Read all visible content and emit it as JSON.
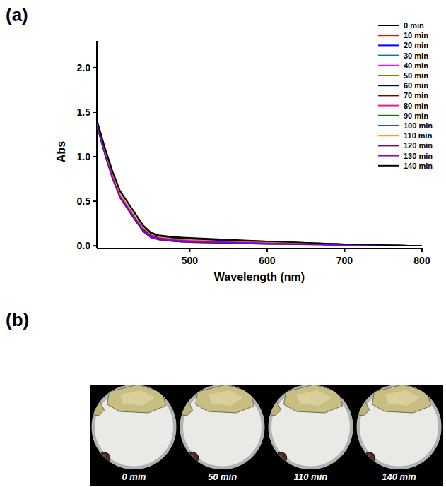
{
  "chart_data": {
    "type": "line",
    "xlabel": "Wavelength (nm)",
    "ylabel": "Abs",
    "x": [
      380,
      390,
      400,
      410,
      420,
      430,
      440,
      450,
      460,
      480,
      500,
      550,
      600,
      700,
      800
    ],
    "xlim": [
      380,
      800
    ],
    "xticks": [
      500,
      600,
      700,
      800
    ],
    "ylim": [
      -0.03,
      2.3
    ],
    "yticks": [
      {
        "value": 0,
        "label": "0.0"
      },
      0.5,
      {
        "value": 1,
        "label": "1.0"
      },
      1.5,
      {
        "value": 2,
        "label": "2.0"
      }
    ],
    "legend": "upper right",
    "series": [
      {
        "name": "0 min",
        "color": "#000000",
        "values": [
          1.42,
          1.12,
          0.85,
          0.62,
          0.49,
          0.36,
          0.23,
          0.15,
          0.12,
          0.1,
          0.09,
          0.07,
          0.05,
          0.02,
          0.0
        ]
      },
      {
        "name": "10 min",
        "color": "#ff0000",
        "values": [
          1.38,
          1.07,
          0.79,
          0.57,
          0.44,
          0.31,
          0.19,
          0.12,
          0.1,
          0.08,
          0.07,
          0.06,
          0.04,
          0.02,
          0.0
        ]
      },
      {
        "name": "20 min",
        "color": "#0000ff",
        "values": [
          1.37,
          1.05,
          0.77,
          0.55,
          0.42,
          0.29,
          0.17,
          0.1,
          0.08,
          0.06,
          0.05,
          0.04,
          0.03,
          0.01,
          0.0
        ]
      },
      {
        "name": "30 min",
        "color": "#008080",
        "values": [
          1.36,
          1.04,
          0.76,
          0.54,
          0.41,
          0.28,
          0.16,
          0.1,
          0.07,
          0.06,
          0.05,
          0.04,
          0.03,
          0.01,
          0.0
        ]
      },
      {
        "name": "40 min",
        "color": "#ff00ff",
        "values": [
          1.37,
          1.06,
          0.78,
          0.56,
          0.43,
          0.3,
          0.18,
          0.11,
          0.09,
          0.07,
          0.06,
          0.04,
          0.03,
          0.01,
          0.0
        ]
      },
      {
        "name": "50 min",
        "color": "#808000",
        "values": [
          1.36,
          1.05,
          0.77,
          0.55,
          0.42,
          0.29,
          0.17,
          0.11,
          0.08,
          0.06,
          0.05,
          0.04,
          0.03,
          0.01,
          0.0
        ]
      },
      {
        "name": "60 min",
        "color": "#000080",
        "values": [
          1.37,
          1.05,
          0.78,
          0.56,
          0.43,
          0.3,
          0.18,
          0.11,
          0.09,
          0.07,
          0.06,
          0.05,
          0.03,
          0.02,
          0.0
        ]
      },
      {
        "name": "70 min",
        "color": "#800000",
        "values": [
          1.36,
          1.04,
          0.77,
          0.55,
          0.42,
          0.29,
          0.17,
          0.1,
          0.08,
          0.06,
          0.05,
          0.04,
          0.03,
          0.01,
          0.0
        ]
      },
      {
        "name": "80 min",
        "color": "#e0208a",
        "values": [
          1.37,
          1.05,
          0.78,
          0.56,
          0.42,
          0.29,
          0.17,
          0.1,
          0.08,
          0.07,
          0.06,
          0.04,
          0.03,
          0.01,
          0.0
        ]
      },
      {
        "name": "90 min",
        "color": "#008000",
        "values": [
          1.35,
          1.04,
          0.76,
          0.54,
          0.41,
          0.28,
          0.16,
          0.1,
          0.07,
          0.05,
          0.04,
          0.03,
          0.02,
          0.01,
          0.0
        ]
      },
      {
        "name": "100 min",
        "color": "#3344dd",
        "values": [
          1.36,
          1.05,
          0.77,
          0.55,
          0.42,
          0.29,
          0.17,
          0.1,
          0.08,
          0.06,
          0.05,
          0.04,
          0.03,
          0.01,
          0.0
        ]
      },
      {
        "name": "110 min",
        "color": "#ff8000",
        "values": [
          1.38,
          1.07,
          0.8,
          0.58,
          0.45,
          0.32,
          0.2,
          0.13,
          0.1,
          0.08,
          0.07,
          0.05,
          0.04,
          0.02,
          0.0
        ]
      },
      {
        "name": "120 min",
        "color": "#800080",
        "values": [
          1.35,
          1.04,
          0.76,
          0.54,
          0.41,
          0.28,
          0.16,
          0.09,
          0.07,
          0.05,
          0.04,
          0.03,
          0.02,
          0.01,
          0.0
        ]
      },
      {
        "name": "130 min",
        "color": "#8000ff",
        "values": [
          1.36,
          1.04,
          0.77,
          0.55,
          0.42,
          0.29,
          0.17,
          0.1,
          0.08,
          0.06,
          0.05,
          0.04,
          0.03,
          0.01,
          0.0
        ]
      },
      {
        "name": "140 min",
        "color": "#000000",
        "values": [
          1.4,
          1.1,
          0.83,
          0.61,
          0.48,
          0.35,
          0.22,
          0.14,
          0.11,
          0.09,
          0.08,
          0.06,
          0.05,
          0.02,
          0.0
        ]
      }
    ]
  },
  "panel_labels": [
    "(a)",
    "(b)"
  ],
  "micrographs": {
    "captions": [
      "0 min",
      "50 min",
      "110 min",
      "140 min"
    ]
  }
}
